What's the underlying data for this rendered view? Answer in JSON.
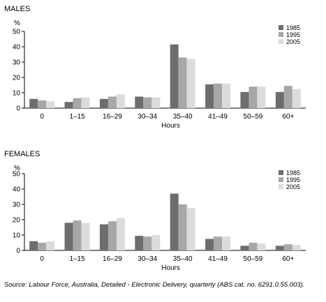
{
  "chart_data": [
    {
      "type": "bar",
      "title": "MALES",
      "ylabel": "%",
      "xlabel": "Hours",
      "ylim": [
        0,
        50
      ],
      "yticks": [
        0,
        10,
        20,
        30,
        40,
        50
      ],
      "categories": [
        "0",
        "1–15",
        "16–29",
        "30–34",
        "35–40",
        "41–49",
        "50–59",
        "60+"
      ],
      "series": [
        {
          "name": "1985",
          "values": [
            6,
            4,
            6,
            7.5,
            41.5,
            15.5,
            10.5,
            10.5
          ]
        },
        {
          "name": "1995",
          "values": [
            5,
            6.5,
            7.5,
            7,
            33,
            16,
            14,
            14.5
          ]
        },
        {
          "name": "2005",
          "values": [
            4.5,
            7,
            9,
            7,
            32,
            16,
            14,
            12.5
          ]
        }
      ],
      "legend": "top-right",
      "grid": false
    },
    {
      "type": "bar",
      "title": "FEMALES",
      "ylabel": "%",
      "xlabel": "Hours",
      "ylim": [
        0,
        50
      ],
      "yticks": [
        0,
        10,
        20,
        30,
        40,
        50
      ],
      "categories": [
        "0",
        "1–15",
        "16–29",
        "30–34",
        "35–40",
        "41–49",
        "50–59",
        "60+"
      ],
      "series": [
        {
          "name": "1985",
          "values": [
            6,
            18,
            17,
            9.5,
            37,
            7.5,
            3,
            3
          ]
        },
        {
          "name": "1995",
          "values": [
            5,
            19.5,
            19,
            9,
            30,
            9,
            5,
            4
          ]
        },
        {
          "name": "2005",
          "values": [
            6,
            18,
            21,
            10,
            27.5,
            9,
            4.5,
            3.5
          ]
        }
      ],
      "legend": "top-right",
      "grid": false
    }
  ],
  "colors": {
    "1985": "#6d6d6d",
    "1995": "#a7a7a7",
    "2005": "#dcdcdc",
    "axis": "#000000"
  },
  "source_text": "Source: Labour Force, Australia, Detailed - Electronic Delivery, quarterly (ABS cat. no. 6291.0.55.003)."
}
